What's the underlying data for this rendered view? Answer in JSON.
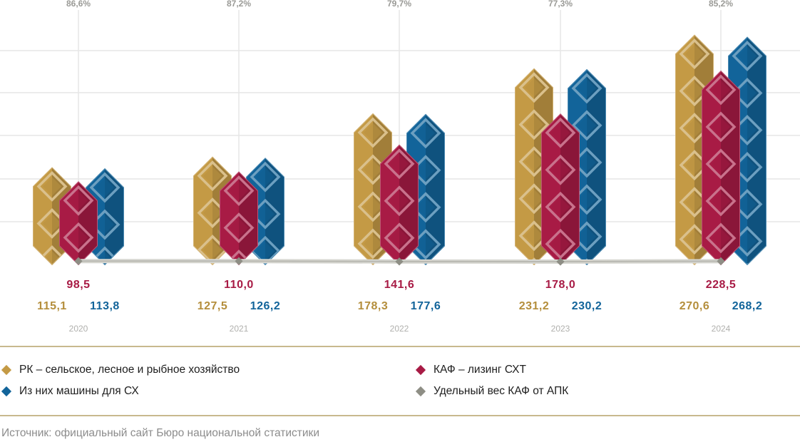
{
  "chart_data": {
    "type": "bar",
    "categories": [
      "2020",
      "2021",
      "2022",
      "2023",
      "2024"
    ],
    "series": [
      {
        "name": "РК – сельское, лесное и рыбное хозяйство",
        "key": "rk",
        "color": "#c49a45",
        "values": [
          115.1,
          127.5,
          178.3,
          231.2,
          270.6
        ],
        "labels": [
          "115,1",
          "127,5",
          "178,3",
          "231,2",
          "270,6"
        ]
      },
      {
        "name": "КАФ – лизинг СХТ",
        "key": "kaf",
        "color": "#a81b45",
        "values": [
          98.5,
          110.0,
          141.6,
          178.0,
          228.5
        ],
        "labels": [
          "98,5",
          "110,0",
          "141,6",
          "178,0",
          "228,5"
        ]
      },
      {
        "name": "Из них машины для СХ",
        "key": "mach",
        "color": "#12649a",
        "values": [
          113.8,
          126.2,
          177.6,
          230.2,
          268.2
        ],
        "labels": [
          "113,8",
          "126,2",
          "177,6",
          "230,2",
          "268,2"
        ]
      }
    ],
    "share": {
      "name": "Удельный вес КАФ от АПК",
      "color": "#8e8e85",
      "values": [
        86.6,
        87.2,
        79.7,
        77.3,
        85.2
      ],
      "labels": [
        "86,6%",
        "87,2%",
        "79,7%",
        "77,3%",
        "85,2%"
      ]
    },
    "ylim": [
      0,
      300
    ],
    "grid": true,
    "title": "",
    "xlabel": "",
    "ylabel": ""
  },
  "legend": {
    "rk": "РК – сельское, лесное и рыбное хозяйство",
    "mach": "Из них машины для СХ",
    "kaf": "КАФ – лизинг СХТ",
    "share": "Удельный вес КАФ от АПК"
  },
  "colors": {
    "rk": "#c49a45",
    "kaf": "#a81b45",
    "mach": "#12649a",
    "share": "#8e8e85",
    "grid": "#e6e6e6"
  },
  "source": "Источник: официальный сайт Бюро национальной статистики"
}
